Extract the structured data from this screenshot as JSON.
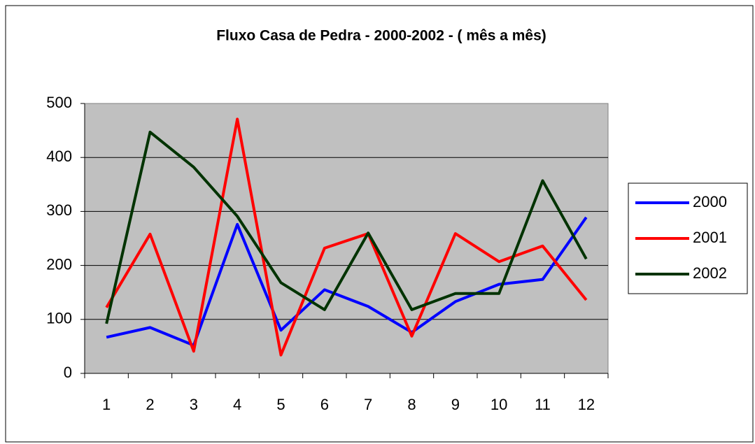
{
  "chart_data": {
    "type": "line",
    "title": "Fluxo Casa de Pedra - 2000-2002 - ( mês a mês)",
    "categories": [
      "1",
      "2",
      "3",
      "4",
      "5",
      "6",
      "7",
      "8",
      "9",
      "10",
      "11",
      "12"
    ],
    "series": [
      {
        "name": "2000",
        "color": "#0000ff",
        "values": [
          67,
          85,
          52,
          276,
          80,
          155,
          124,
          76,
          133,
          165,
          174,
          289
        ]
      },
      {
        "name": "2001",
        "color": "#ff0000",
        "values": [
          122,
          258,
          41,
          471,
          34,
          232,
          259,
          69,
          259,
          207,
          236,
          136
        ]
      },
      {
        "name": "2002",
        "color": "#003300",
        "values": [
          92,
          447,
          382,
          291,
          168,
          118,
          260,
          118,
          148,
          148,
          357,
          212
        ]
      }
    ],
    "ylim": [
      0,
      500
    ],
    "yticks": [
      0,
      100,
      200,
      300,
      400,
      500
    ],
    "grid": true,
    "legend": "right"
  }
}
